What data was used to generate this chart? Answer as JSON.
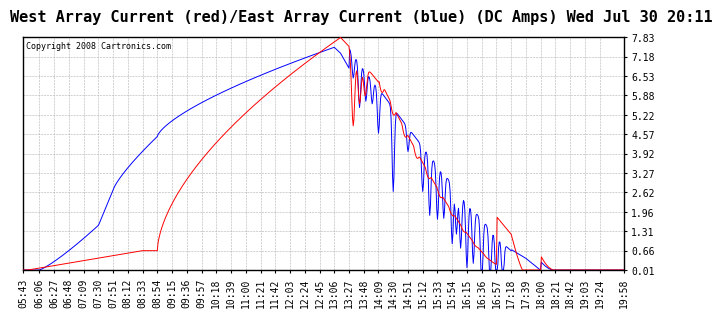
{
  "title": "West Array Current (red)/East Array Current (blue) (DC Amps) Wed Jul 30 20:11",
  "copyright": "Copyright 2008 Cartronics.com",
  "y_ticks": [
    0.01,
    0.66,
    1.31,
    1.96,
    2.62,
    3.27,
    3.92,
    4.57,
    5.22,
    5.88,
    6.53,
    7.18,
    7.83
  ],
  "y_min": 0.01,
  "y_max": 7.83,
  "background_color": "#ffffff",
  "grid_color": "#b0b0b0",
  "red_color": "#ff0000",
  "blue_color": "#0000ff",
  "title_fontsize": 11,
  "tick_fontsize": 7,
  "x_labels": [
    "05:43",
    "06:06",
    "06:27",
    "06:48",
    "07:09",
    "07:30",
    "07:51",
    "08:12",
    "08:33",
    "08:54",
    "09:15",
    "09:36",
    "09:57",
    "10:18",
    "10:39",
    "11:00",
    "11:21",
    "11:42",
    "12:03",
    "12:24",
    "12:45",
    "13:06",
    "13:27",
    "13:48",
    "14:09",
    "14:30",
    "14:51",
    "15:12",
    "15:33",
    "15:54",
    "16:15",
    "16:36",
    "16:57",
    "17:18",
    "17:39",
    "18:00",
    "18:21",
    "18:42",
    "19:03",
    "19:24",
    "19:58"
  ]
}
